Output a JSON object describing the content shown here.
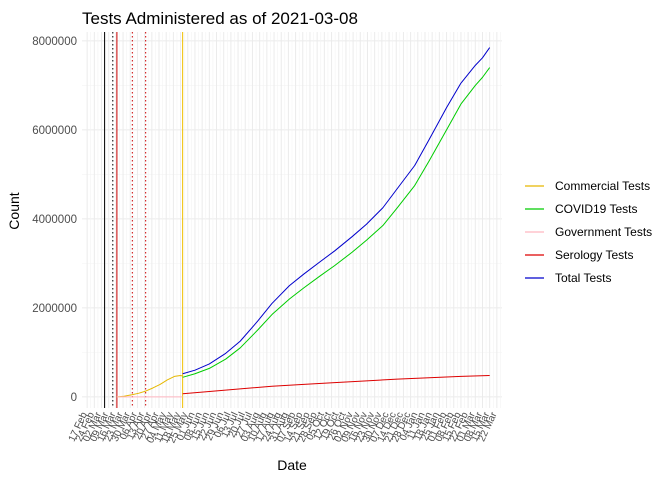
{
  "chart_data": {
    "type": "line",
    "title": "Tests Administered as of 2021-03-08",
    "xlabel": "Date",
    "ylabel": "Count",
    "xlim": [
      "2020-02-12",
      "2021-03-27"
    ],
    "ylim": [
      -250000,
      8200000
    ],
    "grid": true,
    "legend_position": "right",
    "y_ticks": [
      {
        "value": 0,
        "label": "0"
      },
      {
        "value": 2000000,
        "label": "2000000"
      },
      {
        "value": 4000000,
        "label": "4000000"
      },
      {
        "value": 6000000,
        "label": "6000000"
      },
      {
        "value": 8000000,
        "label": "8000000"
      }
    ],
    "x_ticks": [
      {
        "date": "2020-02-17",
        "label": "17 Feb"
      },
      {
        "date": "2020-02-24",
        "label": "24 Feb"
      },
      {
        "date": "2020-03-02",
        "label": "02 Mar"
      },
      {
        "date": "2020-03-09",
        "label": "09 Mar"
      },
      {
        "date": "2020-03-16",
        "label": "16 Mar"
      },
      {
        "date": "2020-03-23",
        "label": "23 Mar"
      },
      {
        "date": "2020-03-30",
        "label": "30 Mar"
      },
      {
        "date": "2020-04-06",
        "label": "06 Apr"
      },
      {
        "date": "2020-04-13",
        "label": "13 Apr"
      },
      {
        "date": "2020-04-20",
        "label": "20 Apr"
      },
      {
        "date": "2020-04-27",
        "label": "27 Apr"
      },
      {
        "date": "2020-05-04",
        "label": "04 May"
      },
      {
        "date": "2020-05-11",
        "label": "11 May"
      },
      {
        "date": "2020-05-18",
        "label": "18 May"
      },
      {
        "date": "2020-05-25",
        "label": "25 May"
      },
      {
        "date": "2020-06-01",
        "label": "01 Jun"
      },
      {
        "date": "2020-06-08",
        "label": "08 Jun"
      },
      {
        "date": "2020-06-15",
        "label": "15 Jun"
      },
      {
        "date": "2020-06-22",
        "label": "22 Jun"
      },
      {
        "date": "2020-06-29",
        "label": "29 Jun"
      },
      {
        "date": "2020-07-06",
        "label": "06 Jul"
      },
      {
        "date": "2020-07-13",
        "label": "13 Jul"
      },
      {
        "date": "2020-07-20",
        "label": "20 Jul"
      },
      {
        "date": "2020-07-27",
        "label": "27 Jul"
      },
      {
        "date": "2020-08-03",
        "label": "03 Aug"
      },
      {
        "date": "2020-08-10",
        "label": "10 Aug"
      },
      {
        "date": "2020-08-17",
        "label": "17 Aug"
      },
      {
        "date": "2020-08-24",
        "label": "24 Aug"
      },
      {
        "date": "2020-08-31",
        "label": "31 Aug"
      },
      {
        "date": "2020-09-07",
        "label": "07 Sep"
      },
      {
        "date": "2020-09-14",
        "label": "14 Sep"
      },
      {
        "date": "2020-09-21",
        "label": "21 Sep"
      },
      {
        "date": "2020-09-28",
        "label": "28 Sep"
      },
      {
        "date": "2020-10-05",
        "label": "05 Oct"
      },
      {
        "date": "2020-10-12",
        "label": "12 Oct"
      },
      {
        "date": "2020-10-19",
        "label": "19 Oct"
      },
      {
        "date": "2020-10-26",
        "label": "26 Oct"
      },
      {
        "date": "2020-11-02",
        "label": "02 Nov"
      },
      {
        "date": "2020-11-09",
        "label": "09 Nov"
      },
      {
        "date": "2020-11-16",
        "label": "16 Nov"
      },
      {
        "date": "2020-11-23",
        "label": "23 Nov"
      },
      {
        "date": "2020-11-30",
        "label": "30 Nov"
      },
      {
        "date": "2020-12-07",
        "label": "07 Dec"
      },
      {
        "date": "2020-12-14",
        "label": "14 Dec"
      },
      {
        "date": "2020-12-21",
        "label": "21 Dec"
      },
      {
        "date": "2020-12-28",
        "label": "28 Dec"
      },
      {
        "date": "2021-01-04",
        "label": "04 Jan"
      },
      {
        "date": "2021-01-11",
        "label": "11 Jan"
      },
      {
        "date": "2021-01-18",
        "label": "18 Jan"
      },
      {
        "date": "2021-01-25",
        "label": "25 Jan"
      },
      {
        "date": "2021-02-01",
        "label": "01 Feb"
      },
      {
        "date": "2021-02-08",
        "label": "08 Feb"
      },
      {
        "date": "2021-02-15",
        "label": "15 Feb"
      },
      {
        "date": "2021-02-22",
        "label": "22 Feb"
      },
      {
        "date": "2021-03-01",
        "label": "01 Mar"
      },
      {
        "date": "2021-03-08",
        "label": "08 Mar"
      },
      {
        "date": "2021-03-15",
        "label": "15 Mar"
      },
      {
        "date": "2021-03-22",
        "label": "22 Mar"
      }
    ],
    "vertical_lines": [
      {
        "date": "2020-03-05",
        "color": "#000000",
        "style": "solid"
      },
      {
        "date": "2020-03-13",
        "color": "#000000",
        "style": "dotted"
      },
      {
        "date": "2020-03-17",
        "color": "#cc0000",
        "style": "solid"
      },
      {
        "date": "2020-04-01",
        "color": "#cc0000",
        "style": "dotted"
      },
      {
        "date": "2020-04-14",
        "color": "#cc0000",
        "style": "dotted"
      },
      {
        "date": "2020-05-20",
        "color": "#f0c000",
        "style": "solid"
      }
    ],
    "series": [
      {
        "name": "Commercial Tests",
        "color": "#e6b800",
        "points": [
          [
            "2020-03-17",
            0
          ],
          [
            "2020-03-24",
            15000
          ],
          [
            "2020-03-31",
            45000
          ],
          [
            "2020-04-07",
            80000
          ],
          [
            "2020-04-14",
            130000
          ],
          [
            "2020-04-21",
            200000
          ],
          [
            "2020-04-28",
            280000
          ],
          [
            "2020-05-05",
            380000
          ],
          [
            "2020-05-12",
            460000
          ],
          [
            "2020-05-18",
            480000
          ],
          [
            "2020-05-20",
            470000
          ]
        ]
      },
      {
        "name": "COVID19 Tests",
        "color": "#00cc00",
        "points": [
          [
            "2020-05-20",
            440000
          ],
          [
            "2020-06-01",
            520000
          ],
          [
            "2020-06-15",
            640000
          ],
          [
            "2020-07-01",
            850000
          ],
          [
            "2020-07-15",
            1100000
          ],
          [
            "2020-08-01",
            1500000
          ],
          [
            "2020-08-15",
            1850000
          ],
          [
            "2020-09-01",
            2200000
          ],
          [
            "2020-09-15",
            2450000
          ],
          [
            "2020-10-01",
            2720000
          ],
          [
            "2020-10-15",
            2950000
          ],
          [
            "2020-11-01",
            3250000
          ],
          [
            "2020-11-15",
            3520000
          ],
          [
            "2020-12-01",
            3850000
          ],
          [
            "2020-12-15",
            4250000
          ],
          [
            "2021-01-01",
            4750000
          ],
          [
            "2021-01-15",
            5300000
          ],
          [
            "2021-02-01",
            6000000
          ],
          [
            "2021-02-15",
            6580000
          ],
          [
            "2021-03-01",
            7000000
          ],
          [
            "2021-03-08",
            7180000
          ],
          [
            "2021-03-15",
            7400000
          ]
        ]
      },
      {
        "name": "Government Tests",
        "color": "#ffb6c1",
        "points": [
          [
            "2020-03-17",
            0
          ],
          [
            "2020-04-01",
            0
          ],
          [
            "2020-05-01",
            0
          ],
          [
            "2020-05-20",
            0
          ]
        ]
      },
      {
        "name": "Serology Tests",
        "color": "#dd0000",
        "points": [
          [
            "2020-05-20",
            70000
          ],
          [
            "2020-06-15",
            120000
          ],
          [
            "2020-07-15",
            180000
          ],
          [
            "2020-08-15",
            240000
          ],
          [
            "2020-09-15",
            280000
          ],
          [
            "2020-10-15",
            320000
          ],
          [
            "2020-11-15",
            360000
          ],
          [
            "2020-12-15",
            400000
          ],
          [
            "2021-01-15",
            430000
          ],
          [
            "2021-02-15",
            460000
          ],
          [
            "2021-03-15",
            480000
          ]
        ]
      },
      {
        "name": "Total Tests",
        "color": "#0000cc",
        "points": [
          [
            "2020-05-20",
            520000
          ],
          [
            "2020-06-01",
            600000
          ],
          [
            "2020-06-15",
            740000
          ],
          [
            "2020-07-01",
            980000
          ],
          [
            "2020-07-15",
            1250000
          ],
          [
            "2020-08-01",
            1700000
          ],
          [
            "2020-08-15",
            2100000
          ],
          [
            "2020-09-01",
            2500000
          ],
          [
            "2020-09-15",
            2760000
          ],
          [
            "2020-10-01",
            3040000
          ],
          [
            "2020-10-15",
            3280000
          ],
          [
            "2020-11-01",
            3600000
          ],
          [
            "2020-11-15",
            3880000
          ],
          [
            "2020-12-01",
            4250000
          ],
          [
            "2020-12-15",
            4680000
          ],
          [
            "2021-01-01",
            5200000
          ],
          [
            "2021-01-15",
            5780000
          ],
          [
            "2021-02-01",
            6500000
          ],
          [
            "2021-02-15",
            7050000
          ],
          [
            "2021-03-01",
            7450000
          ],
          [
            "2021-03-08",
            7620000
          ],
          [
            "2021-03-15",
            7850000
          ]
        ]
      }
    ]
  }
}
